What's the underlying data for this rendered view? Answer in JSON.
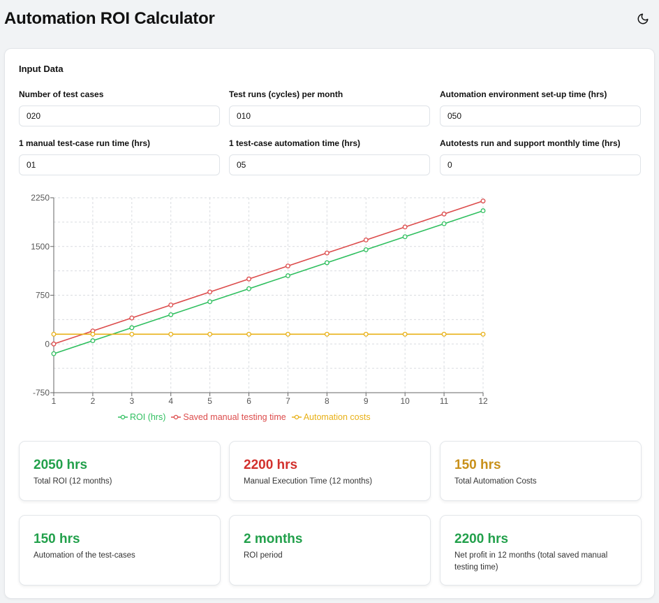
{
  "header": {
    "title": "Automation ROI Calculator",
    "theme_icon": "moon-icon"
  },
  "input_section": {
    "title": "Input Data",
    "fields": [
      {
        "label": "Number of test cases",
        "value": "020"
      },
      {
        "label": "Test runs (cycles) per month",
        "value": "010"
      },
      {
        "label": "Automation environment set-up time (hrs)",
        "value": "050"
      },
      {
        "label": "1 manual test-case run time (hrs)",
        "value": "01"
      },
      {
        "label": "1 test-case automation time (hrs)",
        "value": "05"
      },
      {
        "label": "Autotests run and support monthly time (hrs)",
        "value": "0"
      }
    ]
  },
  "colors": {
    "roi": "#2fbf5f",
    "saved": "#dc4b4b",
    "costs": "#e8b016",
    "roi_text": "#22a04b",
    "saved_text": "#d2312d",
    "costs_text": "#c8901a"
  },
  "chart_data": {
    "type": "line",
    "x": [
      1,
      2,
      3,
      4,
      5,
      6,
      7,
      8,
      9,
      10,
      11,
      12
    ],
    "series": [
      {
        "name": "ROI (hrs)",
        "values": [
          -150,
          50,
          250,
          450,
          650,
          850,
          1050,
          1250,
          1450,
          1650,
          1850,
          2050
        ]
      },
      {
        "name": "Saved manual testing time",
        "values": [
          0,
          200,
          400,
          600,
          800,
          1000,
          1200,
          1400,
          1600,
          1800,
          2000,
          2200
        ]
      },
      {
        "name": "Automation costs",
        "values": [
          150,
          150,
          150,
          150,
          150,
          150,
          150,
          150,
          150,
          150,
          150,
          150
        ]
      }
    ],
    "yticks": [
      -750,
      0,
      750,
      1500,
      2250
    ],
    "ylim": [
      -750,
      2250
    ],
    "xlim": [
      1,
      12
    ],
    "grid": true,
    "legend_position": "bottom"
  },
  "stats": [
    {
      "value": "2050 hrs",
      "label": "Total ROI (12 months)"
    },
    {
      "value": "2200 hrs",
      "label": "Manual Execution Time (12 months)"
    },
    {
      "value": "150 hrs",
      "label": "Total Automation Costs"
    },
    {
      "value": "150 hrs",
      "label": "Automation of the test-cases"
    },
    {
      "value": "2 months",
      "label": "ROI period"
    },
    {
      "value": "2200 hrs",
      "label": "Net profit in 12 months (total saved manual testing time)"
    }
  ]
}
